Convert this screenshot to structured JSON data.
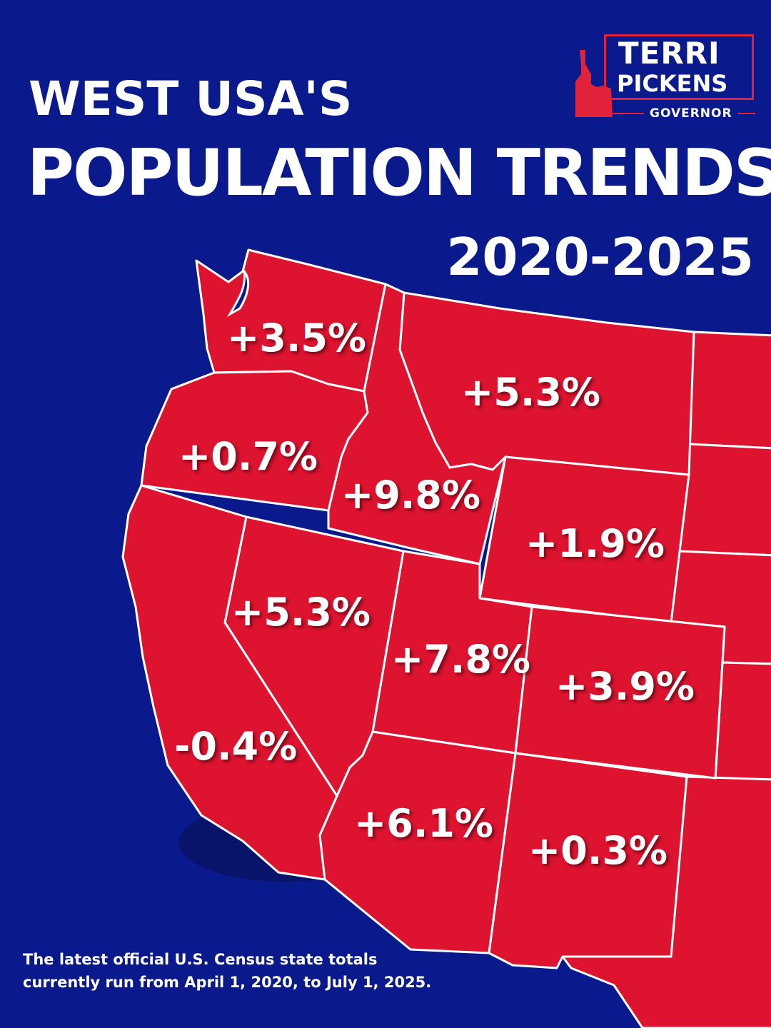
{
  "header": {
    "line1": "WEST USA'S",
    "line2": "POPULATION TRENDS",
    "line3": "2020-2025"
  },
  "logo": {
    "name_first": "TERRI",
    "name_last": "PICKENS",
    "office": "GOVERNOR",
    "icon": "idaho-state-icon"
  },
  "colors": {
    "background": "#0a1a8c",
    "state_fill": "#dd1330",
    "border": "#ffffff",
    "text": "#ffffff"
  },
  "map": {
    "regions": [
      {
        "id": "washington",
        "change": "+3.5%"
      },
      {
        "id": "montana",
        "change": "+5.3%"
      },
      {
        "id": "oregon",
        "change": "+0.7%"
      },
      {
        "id": "idaho",
        "change": "+9.8%"
      },
      {
        "id": "wyoming",
        "change": "+1.9%"
      },
      {
        "id": "nevada",
        "change": "+5.3%"
      },
      {
        "id": "utah",
        "change": "+7.8%"
      },
      {
        "id": "colorado",
        "change": "+3.9%"
      },
      {
        "id": "california",
        "change": "-0.4%"
      },
      {
        "id": "arizona",
        "change": "+6.1%"
      },
      {
        "id": "new-mexico",
        "change": "+0.3%"
      }
    ]
  },
  "footnote": {
    "line1": "The latest official U.S. Census state totals",
    "line2": "currently run from April 1, 2020, to July 1, 2025."
  }
}
